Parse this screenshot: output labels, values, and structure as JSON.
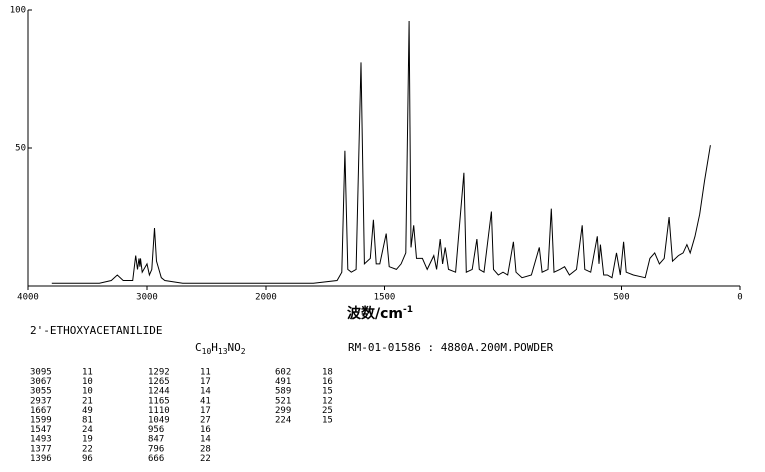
{
  "chart_data": {
    "type": "line",
    "x_label": "波数/cm",
    "x_label_sup": "-1",
    "xlim": [
      4000,
      0
    ],
    "xticks": [
      4000,
      3000,
      2000,
      1500,
      500,
      0
    ],
    "ylim": [
      0,
      100
    ],
    "yticks": [
      50,
      100
    ],
    "color": "#000000",
    "spectrum": {
      "x": [
        3800,
        3400,
        3300,
        3250,
        3200,
        3120,
        3095,
        3080,
        3067,
        3060,
        3055,
        3040,
        3000,
        2980,
        2960,
        2937,
        2920,
        2900,
        2880,
        2850,
        2700,
        2500,
        2000,
        1800,
        1700,
        1680,
        1667,
        1655,
        1640,
        1620,
        1599,
        1585,
        1560,
        1547,
        1535,
        1520,
        1493,
        1480,
        1450,
        1430,
        1410,
        1396,
        1388,
        1377,
        1365,
        1340,
        1320,
        1292,
        1280,
        1265,
        1255,
        1244,
        1230,
        1200,
        1165,
        1155,
        1130,
        1110,
        1100,
        1080,
        1049,
        1040,
        1020,
        1000,
        980,
        956,
        945,
        920,
        880,
        847,
        835,
        810,
        796,
        785,
        760,
        740,
        720,
        690,
        666,
        655,
        630,
        602,
        595,
        589,
        575,
        560,
        540,
        521,
        505,
        491,
        480,
        450,
        400,
        380,
        360,
        340,
        320,
        299,
        285,
        260,
        240,
        224,
        210,
        190,
        170,
        150,
        125
      ],
      "values": [
        1,
        1,
        2,
        4,
        2,
        2,
        11,
        6,
        10,
        7,
        10,
        5,
        8,
        4,
        6,
        21,
        9,
        6,
        3,
        2,
        1,
        1,
        1,
        1,
        2,
        5,
        49,
        6,
        5,
        6,
        81,
        8,
        10,
        24,
        8,
        8,
        19,
        7,
        6,
        8,
        12,
        96,
        14,
        22,
        10,
        10,
        6,
        11,
        6,
        17,
        8,
        14,
        6,
        5,
        41,
        5,
        6,
        17,
        6,
        5,
        27,
        6,
        4,
        5,
        4,
        16,
        5,
        3,
        4,
        14,
        5,
        6,
        28,
        5,
        6,
        7,
        4,
        6,
        22,
        6,
        5,
        18,
        8,
        15,
        4,
        4,
        3,
        12,
        4,
        16,
        5,
        4,
        3,
        10,
        12,
        8,
        10,
        25,
        9,
        11,
        12,
        15,
        12,
        18,
        26,
        38,
        51
      ]
    },
    "compound": "2'-ETHOXYACETANILIDE",
    "formula": [
      "C",
      "10",
      "H",
      "13",
      "NO",
      "2"
    ],
    "sample_info": "RM-01-01586 : 4880A.200M.POWDER",
    "peak_table": [
      [
        [
          3095,
          11
        ],
        [
          3067,
          10
        ],
        [
          3055,
          10
        ],
        [
          2937,
          21
        ],
        [
          1667,
          49
        ],
        [
          1599,
          81
        ],
        [
          1547,
          24
        ],
        [
          1493,
          19
        ],
        [
          1377,
          22
        ],
        [
          1396,
          96
        ]
      ],
      [
        [
          1292,
          11
        ],
        [
          1265,
          17
        ],
        [
          1244,
          14
        ],
        [
          1165,
          41
        ],
        [
          1110,
          17
        ],
        [
          1049,
          27
        ],
        [
          956,
          16
        ],
        [
          847,
          14
        ],
        [
          796,
          28
        ],
        [
          666,
          22
        ]
      ],
      [
        [
          602,
          18
        ],
        [
          491,
          16
        ],
        [
          589,
          15
        ],
        [
          521,
          12
        ],
        [
          299,
          25
        ],
        [
          224,
          15
        ]
      ]
    ]
  }
}
